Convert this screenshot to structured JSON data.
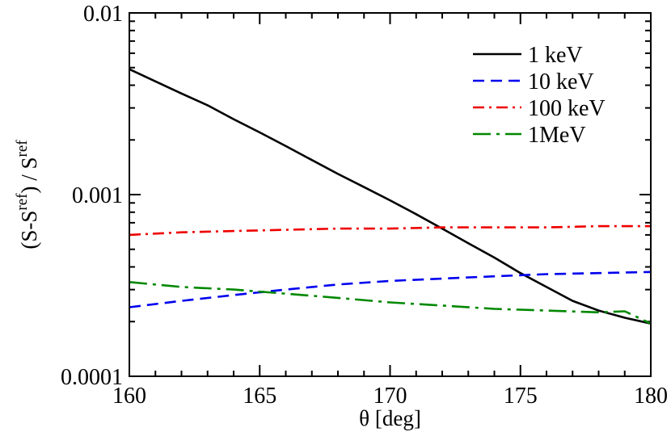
{
  "chart_data": {
    "type": "line",
    "title": "",
    "xlabel": "θ [deg]",
    "ylabel_parts": [
      "(S-S",
      "ref",
      ") / S",
      "ref"
    ],
    "xlim": [
      160,
      180
    ],
    "ylim": [
      0.0001,
      0.01
    ],
    "yscale": "log",
    "x_ticks": [
      160,
      165,
      170,
      175,
      180
    ],
    "x_tick_labels": [
      "160",
      "165",
      "170",
      "175",
      "180"
    ],
    "y_ticks": [
      0.0001,
      0.001,
      0.01
    ],
    "y_tick_labels": [
      "0.0001",
      "0.001",
      "0.01"
    ],
    "grid": false,
    "legend_position": "top-right",
    "series": [
      {
        "name": "1 keV",
        "color": "#000000",
        "dash": "solid",
        "x": [
          160,
          161,
          162,
          163,
          164,
          165,
          166,
          167,
          168,
          169,
          170,
          171,
          172,
          173,
          174,
          175,
          176,
          177,
          178,
          179,
          180
        ],
        "y": [
          0.0049,
          0.0042,
          0.0036,
          0.0031,
          0.0026,
          0.0022,
          0.00185,
          0.00155,
          0.0013,
          0.0011,
          0.00093,
          0.00078,
          0.00065,
          0.00054,
          0.00045,
          0.00037,
          0.00031,
          0.00026,
          0.00023,
          0.00021,
          0.000195
        ]
      },
      {
        "name": "10 keV",
        "color": "#0000ee",
        "dash": "dashed",
        "x": [
          160,
          162,
          164,
          166,
          168,
          170,
          172,
          174,
          176,
          178,
          180
        ],
        "y": [
          0.00024,
          0.00026,
          0.00028,
          0.0003,
          0.00032,
          0.000335,
          0.000345,
          0.000355,
          0.000365,
          0.00037,
          0.000375
        ]
      },
      {
        "name": "100 keV",
        "color": "#ee0000",
        "dash": "dashdot",
        "x": [
          160,
          162,
          164,
          166,
          168,
          170,
          172,
          174,
          176,
          178,
          180
        ],
        "y": [
          0.0006,
          0.00062,
          0.00063,
          0.00064,
          0.00065,
          0.00065,
          0.00066,
          0.00066,
          0.00066,
          0.00067,
          0.00067
        ]
      },
      {
        "name": "1MeV",
        "color": "#008800",
        "dash": "longdashdot",
        "x": [
          160,
          162,
          164,
          166,
          168,
          170,
          172,
          174,
          176,
          178,
          179,
          180
        ],
        "y": [
          0.00033,
          0.00031,
          0.0003,
          0.000285,
          0.00027,
          0.000255,
          0.000245,
          0.000235,
          0.00023,
          0.000225,
          0.000228,
          0.000195
        ]
      }
    ]
  }
}
